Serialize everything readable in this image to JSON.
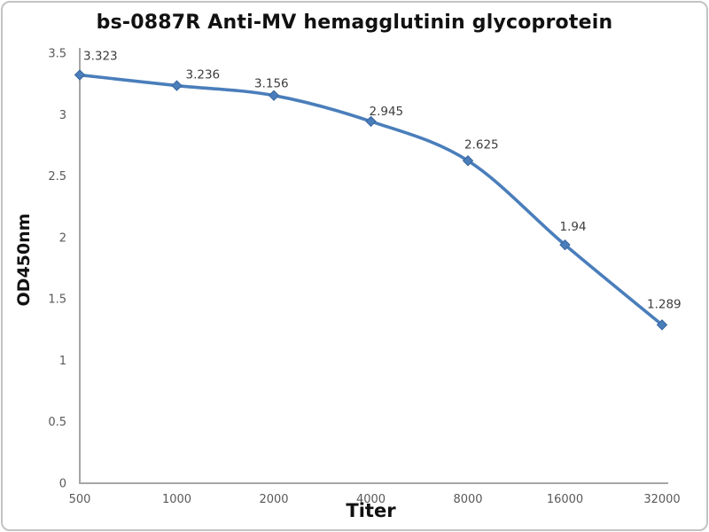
{
  "chart_data": {
    "type": "line",
    "title": "bs-0887R Anti-MV hemagglutinin glycoprotein",
    "xlabel": "Titer",
    "ylabel": "OD450nm",
    "categories": [
      "500",
      "1000",
      "2000",
      "4000",
      "8000",
      "16000",
      "32000"
    ],
    "series": [
      {
        "name": "OD450nm",
        "values": [
          3.323,
          3.236,
          3.156,
          2.945,
          2.625,
          1.94,
          1.289
        ],
        "data_labels": [
          "3.323",
          "3.236",
          "3.156",
          "2.945",
          "2.625",
          "1.94",
          "1.289"
        ]
      }
    ],
    "ylim": [
      0,
      3.5
    ],
    "yticks": [
      "0",
      "0.5",
      "1",
      "1.5",
      "2",
      "2.5",
      "3",
      "3.5"
    ],
    "grid": false,
    "legend": "none",
    "line_smooth": true,
    "marker": "diamond",
    "colors": {
      "line": "#4a7ebb",
      "marker": "#4a7ebb",
      "marker_edge": "#38659d",
      "axis": "#a6a6a6",
      "tick_label": "#595959",
      "data_label": "#3d3d3d"
    }
  }
}
